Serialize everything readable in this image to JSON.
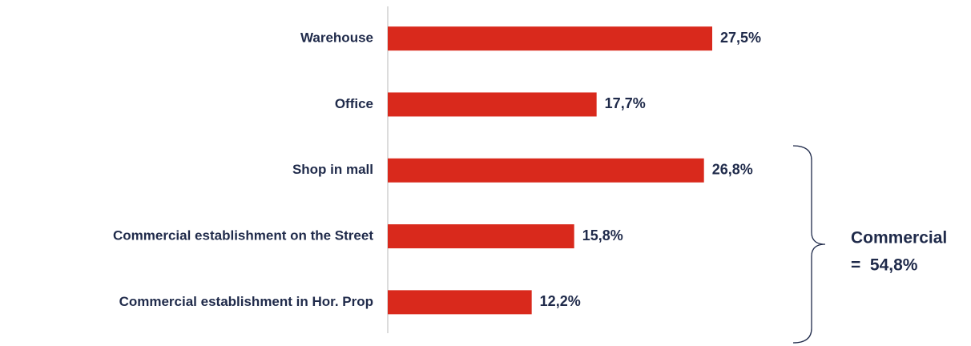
{
  "chart_data": {
    "type": "bar",
    "orientation": "horizontal",
    "categories": [
      "Warehouse",
      "Office",
      "Shop in mall",
      "Commercial establishment on the Street",
      "Commercial establishment in Hor. Prop"
    ],
    "values": [
      27.5,
      17.7,
      26.8,
      15.8,
      12.2
    ],
    "value_labels": [
      "27,5%",
      "17,7%",
      "26,8%",
      "15,8%",
      "12,2%"
    ],
    "color": "#d9291c",
    "annotations": [
      "Commercial",
      "=  54,8%"
    ]
  }
}
